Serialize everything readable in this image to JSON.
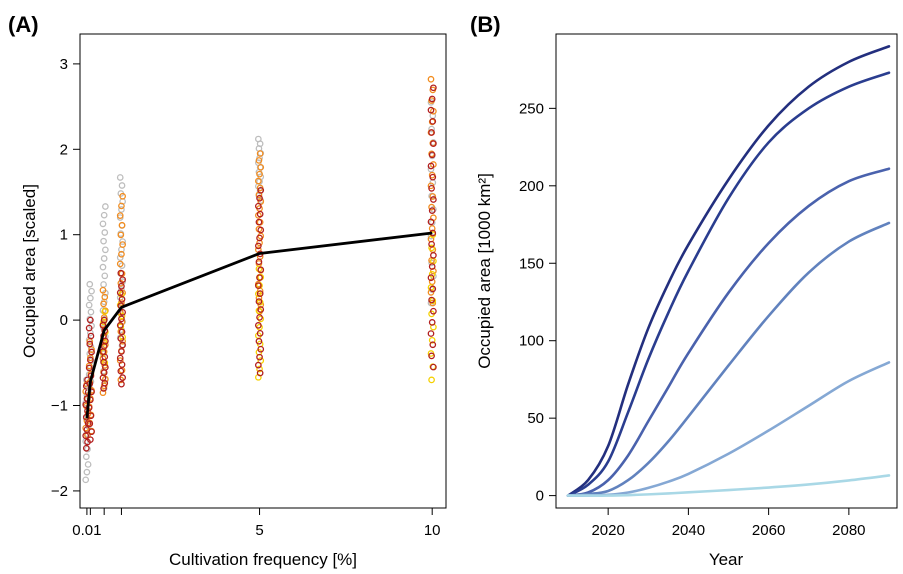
{
  "figure": {
    "colors": {
      "grey": "#bdbdbd",
      "orange": "#f28c1e",
      "yellow": "#f5d000",
      "darkred": "#b21e1e",
      "mean_line": "#000000",
      "blue_ramp": [
        "#232f7e",
        "#2a3d8f",
        "#4a62ad",
        "#6182be",
        "#85a8d4",
        "#a9d8e6"
      ]
    }
  },
  "chart_data": [
    {
      "panel_label": "(A)",
      "type": "scatter",
      "xlabel": "Cultivation frequency [%]",
      "ylabel": "Occupied area [scaled]",
      "xlim": [
        -0.2,
        10.4
      ],
      "ylim": [
        -2.2,
        3.35
      ],
      "x_ticks": [
        {
          "value": 0.0,
          "label": "0.01"
        },
        {
          "value": 5,
          "label": "5"
        },
        {
          "value": 10,
          "label": "10"
        }
      ],
      "x_minor_ticks": [
        0.0,
        0.1,
        0.5,
        1.0
      ],
      "y_ticks": [
        {
          "value": -2,
          "label": "−2"
        },
        {
          "value": -1,
          "label": "−1"
        },
        {
          "value": 0,
          "label": "0"
        },
        {
          "value": 1,
          "label": "1"
        },
        {
          "value": 2,
          "label": "2"
        },
        {
          "value": 3,
          "label": "3"
        }
      ],
      "grid": false,
      "marker": "open-circle",
      "point_groups": [
        {
          "x": 0.0,
          "groups": [
            {
              "color": "grey",
              "range": [
                -1.87,
                -0.7
              ],
              "n": 14
            },
            {
              "color": "orange",
              "range": [
                -1.35,
                -0.75
              ],
              "n": 8
            },
            {
              "color": "darkred",
              "range": [
                -1.5,
                -0.7
              ],
              "n": 12
            }
          ]
        },
        {
          "x": 0.1,
          "groups": [
            {
              "color": "grey",
              "range": [
                -0.8,
                0.42
              ],
              "n": 16
            },
            {
              "color": "orange",
              "range": [
                -1.3,
                -0.25
              ],
              "n": 12
            },
            {
              "color": "darkred",
              "range": [
                -1.4,
                0.0
              ],
              "n": 16
            }
          ]
        },
        {
          "x": 0.5,
          "groups": [
            {
              "color": "grey",
              "range": [
                -0.8,
                1.33
              ],
              "n": 22
            },
            {
              "color": "orange",
              "range": [
                -0.85,
                0.35
              ],
              "n": 16
            },
            {
              "color": "yellow",
              "range": [
                -0.5,
                0.1
              ],
              "n": 6
            },
            {
              "color": "darkred",
              "range": [
                -0.8,
                0.0
              ],
              "n": 14
            }
          ]
        },
        {
          "x": 1.0,
          "groups": [
            {
              "color": "grey",
              "range": [
                -0.3,
                1.67
              ],
              "n": 22
            },
            {
              "color": "orange",
              "range": [
                -0.7,
                1.45
              ],
              "n": 20
            },
            {
              "color": "yellow",
              "range": [
                -0.2,
                0.3
              ],
              "n": 5
            },
            {
              "color": "darkred",
              "range": [
                -0.75,
                0.55
              ],
              "n": 18
            }
          ]
        },
        {
          "x": 5.0,
          "groups": [
            {
              "color": "grey",
              "range": [
                1.4,
                2.12
              ],
              "n": 14
            },
            {
              "color": "orange",
              "range": [
                0.1,
                1.95
              ],
              "n": 24
            },
            {
              "color": "yellow",
              "range": [
                -0.67,
                0.6
              ],
              "n": 14
            },
            {
              "color": "darkred",
              "range": [
                -0.62,
                1.52
              ],
              "n": 24
            }
          ]
        },
        {
          "x": 10.0,
          "groups": [
            {
              "color": "grey",
              "range": [
                0.2,
                2.55
              ],
              "n": 16
            },
            {
              "color": "orange",
              "range": [
                0.2,
                2.82
              ],
              "n": 22
            },
            {
              "color": "yellow",
              "range": [
                -0.7,
                1.0
              ],
              "n": 12
            },
            {
              "color": "darkred",
              "range": [
                -0.55,
                2.72
              ],
              "n": 26
            }
          ]
        }
      ],
      "mean_line": {
        "x": [
          0.0,
          0.1,
          0.5,
          1.0,
          5.0,
          10.0
        ],
        "y": [
          -1.15,
          -0.72,
          -0.12,
          0.15,
          0.78,
          1.02
        ]
      }
    },
    {
      "panel_label": "(B)",
      "type": "line",
      "xlabel": "Year",
      "ylabel": "Occupied area [1000 km²]",
      "xlim": [
        2007,
        2092
      ],
      "ylim": [
        -8,
        298
      ],
      "x_ticks": [
        {
          "value": 2020,
          "label": "2020"
        },
        {
          "value": 2040,
          "label": "2040"
        },
        {
          "value": 2060,
          "label": "2060"
        },
        {
          "value": 2080,
          "label": "2080"
        }
      ],
      "y_ticks": [
        {
          "value": 0,
          "label": "0"
        },
        {
          "value": 50,
          "label": "50"
        },
        {
          "value": 100,
          "label": "100"
        },
        {
          "value": 150,
          "label": "150"
        },
        {
          "value": 200,
          "label": "200"
        },
        {
          "value": 250,
          "label": "250"
        }
      ],
      "grid": false,
      "x": [
        2010,
        2015,
        2020,
        2025,
        2030,
        2035,
        2040,
        2050,
        2060,
        2070,
        2080,
        2090
      ],
      "series": [
        {
          "color_index": 0,
          "values": [
            0,
            10,
            32,
            72,
            108,
            137,
            162,
            204,
            239,
            264,
            280,
            290
          ]
        },
        {
          "color_index": 1,
          "values": [
            0,
            7,
            22,
            54,
            88,
            118,
            145,
            192,
            228,
            250,
            264,
            273
          ]
        },
        {
          "color_index": 2,
          "values": [
            0,
            2,
            10,
            26,
            48,
            70,
            92,
            131,
            163,
            187,
            203,
            211
          ]
        },
        {
          "color_index": 3,
          "values": [
            0,
            1,
            3,
            10,
            21,
            35,
            51,
            84,
            116,
            144,
            164,
            176
          ]
        },
        {
          "color_index": 4,
          "values": [
            0,
            0,
            0.5,
            2,
            5,
            9,
            14,
            27,
            42,
            58,
            74,
            86
          ]
        },
        {
          "color_index": 5,
          "values": [
            0,
            0,
            0,
            0.3,
            0.8,
            1.4,
            2.1,
            3.6,
            5.2,
            7.2,
            9.8,
            13
          ]
        }
      ]
    }
  ]
}
